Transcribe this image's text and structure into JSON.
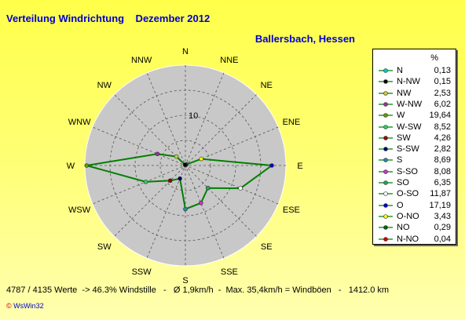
{
  "chart_data": {
    "type": "radar",
    "title": "Verteilung Windrichtung    Dezember 2012",
    "subtitle": "Ballersbach, Hessen",
    "scale_label": "10",
    "legend_unit": "%",
    "grid": true,
    "legend_position": "right",
    "directions": [
      "N",
      "NNE",
      "NE",
      "ENE",
      "E",
      "ESE",
      "SE",
      "SSE",
      "S",
      "SSW",
      "SW",
      "WSW",
      "W",
      "WNW",
      "NW",
      "NNW"
    ],
    "series": [
      {
        "legend": "N",
        "axis_index": 0,
        "value": 0.13,
        "color": "#00cccc"
      },
      {
        "legend": "N-NW",
        "axis_index": 15,
        "value": 0.15,
        "color": "#000000"
      },
      {
        "legend": "NW",
        "axis_index": 14,
        "value": 2.53,
        "color": "#cccc33"
      },
      {
        "legend": "W-NW",
        "axis_index": 13,
        "value": 6.02,
        "color": "#993399"
      },
      {
        "legend": "W",
        "axis_index": 12,
        "value": 19.64,
        "color": "#669900"
      },
      {
        "legend": "W-SW",
        "axis_index": 11,
        "value": 8.52,
        "color": "#33cc66"
      },
      {
        "legend": "SW",
        "axis_index": 10,
        "value": 4.26,
        "color": "#990000"
      },
      {
        "legend": "S-SW",
        "axis_index": 9,
        "value": 2.82,
        "color": "#000066"
      },
      {
        "legend": "S",
        "axis_index": 8,
        "value": 8.69,
        "color": "#338899"
      },
      {
        "legend": "S-SO",
        "axis_index": 7,
        "value": 8.08,
        "color": "#cc33cc"
      },
      {
        "legend": "SO",
        "axis_index": 6,
        "value": 6.35,
        "color": "#339966"
      },
      {
        "legend": "O-SO",
        "axis_index": 5,
        "value": 11.87,
        "color": "#ffffff"
      },
      {
        "legend": "O",
        "axis_index": 4,
        "value": 17.19,
        "color": "#0000cc"
      },
      {
        "legend": "O-NO",
        "axis_index": 3,
        "value": 3.43,
        "color": "#ffff00"
      },
      {
        "legend": "NO",
        "axis_index": 2,
        "value": 0.29,
        "color": "#006600"
      },
      {
        "legend": "N-NO",
        "axis_index": 1,
        "value": 0.04,
        "color": "#cc0000"
      }
    ],
    "polygon_color": "#008000"
  },
  "legend_values": [
    "0,13",
    "0,15",
    "2,53",
    "6,02",
    "19,64",
    "8,52",
    "4,26",
    "2,82",
    "8,69",
    "8,08",
    "6,35",
    "11,87",
    "17,19",
    "3,43",
    "0,29",
    "0,04"
  ],
  "footer": "4787 / 4135 Werte  -> 46.3% Windstille   -   Ø 1,9km/h  -  Max. 35,4km/h = Windböen   -   1412.0 km",
  "credit": "WsWin32"
}
